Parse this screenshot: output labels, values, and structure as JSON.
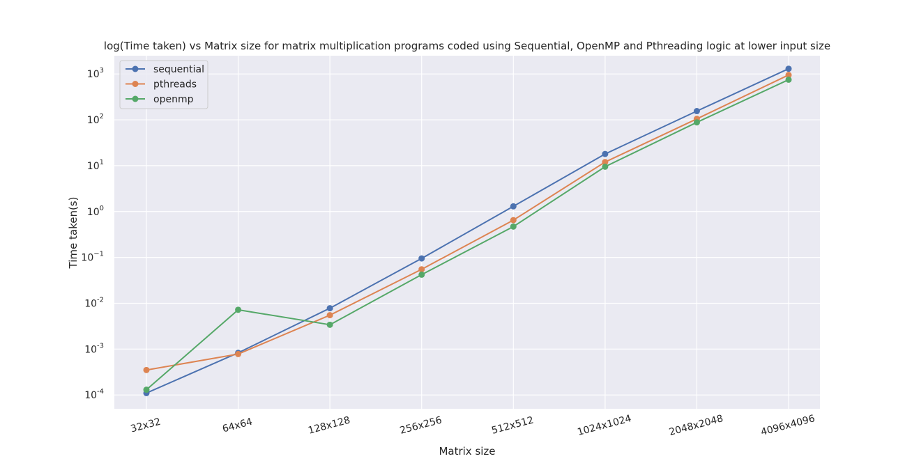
{
  "chart_data": {
    "type": "line",
    "title": "log(Time taken) vs Matrix size for matrix multiplication programs coded using Sequential, OpenMP and Pthreading logic at lower input size",
    "xlabel": "Matrix size",
    "ylabel": "Time taken(s)",
    "yscale": "log",
    "ylim": [
      5e-05,
      2500
    ],
    "yticks": [
      {
        "base": "10",
        "exp": "-4",
        "value": 0.0001
      },
      {
        "base": "10",
        "exp": "-3",
        "value": 0.001
      },
      {
        "base": "10",
        "exp": "-2",
        "value": 0.01
      },
      {
        "base": "10",
        "exp": "−1",
        "value": 0.1
      },
      {
        "base": "10",
        "exp": "0",
        "value": 1
      },
      {
        "base": "10",
        "exp": "1",
        "value": 10
      },
      {
        "base": "10",
        "exp": "2",
        "value": 100
      },
      {
        "base": "10",
        "exp": "3",
        "value": 1000
      }
    ],
    "categories": [
      "32x32",
      "64x64",
      "128x128",
      "256x256",
      "512x512",
      "1024x1024",
      "2048x2048",
      "4096x4096"
    ],
    "grid": true,
    "legend_position": "top-left",
    "series": [
      {
        "name": "sequential",
        "color": "#4c72b0",
        "values": [
          0.00011,
          0.00083,
          0.0078,
          0.095,
          1.3,
          18,
          155,
          1300
        ]
      },
      {
        "name": "pthreads",
        "color": "#dd8452",
        "values": [
          0.00035,
          0.00078,
          0.0055,
          0.055,
          0.65,
          12,
          105,
          950
        ]
      },
      {
        "name": "openmp",
        "color": "#55a868",
        "values": [
          0.00013,
          0.0072,
          0.0034,
          0.042,
          0.47,
          9.5,
          88,
          750
        ]
      }
    ],
    "colors": {
      "plot_background": "#eaeaf2",
      "grid": "#ffffff"
    }
  }
}
